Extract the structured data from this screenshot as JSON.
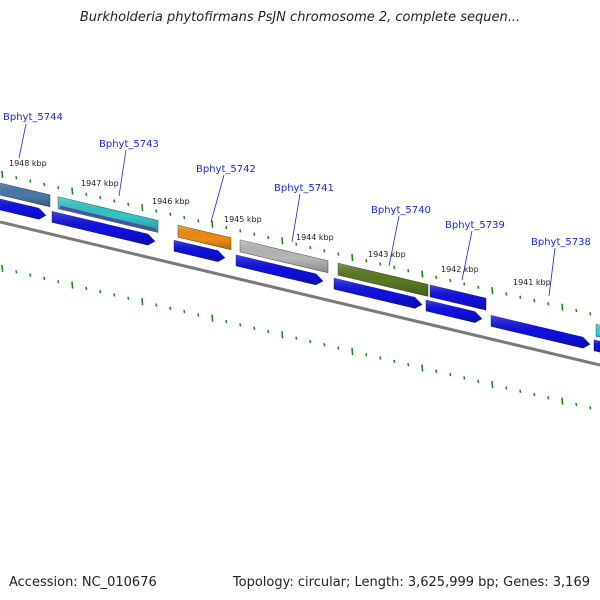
{
  "title": "Burkholderia phytofirmans PsJN chromosome 2, complete sequen...",
  "footer": {
    "accession": "Accession: NC_010676",
    "summary": "Topology: circular; Length: 3,625,999 bp; Genes: 3,169"
  },
  "colors": {
    "gene_blue": "#1010e0",
    "backbone": "#7a7a7a",
    "tick_green": "#1a8a1a",
    "label_blue": "#1a2ad0"
  },
  "ticks": [
    "1948 kbp",
    "1947 kbp",
    "1946 kbp",
    "1945 kbp",
    "1944 kbp",
    "1943 kbp",
    "1942 kbp",
    "1941 kbp"
  ],
  "genes": [
    {
      "label": "Bphyt_5744",
      "color": "#4a7aa8"
    },
    {
      "label": "Bphyt_5743",
      "color": "#30c8c8"
    },
    {
      "label": "Bphyt_5742",
      "color": "#f08c10"
    },
    {
      "label": "Bphyt_5741",
      "color": "#b8b8b8"
    },
    {
      "label": "Bphyt_5740",
      "color": "#5a7a20"
    },
    {
      "label": "Bphyt_5739",
      "color": "#1010e0"
    },
    {
      "label": "Bphyt_5738",
      "color": "#1010e0"
    }
  ]
}
